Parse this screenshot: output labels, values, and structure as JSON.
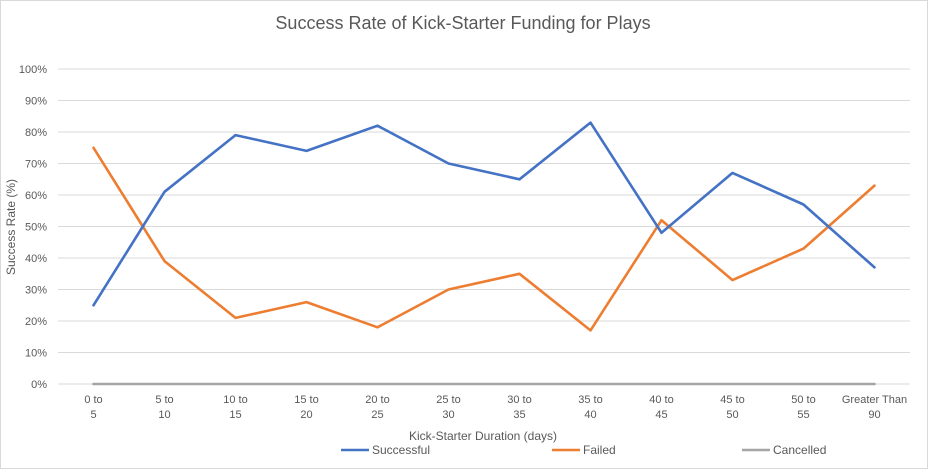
{
  "chart_data": {
    "type": "line",
    "title": "Success Rate of Kick-Starter Funding for Plays",
    "xlabel": "Kick-Starter Duration (days)",
    "ylabel": "Success Rate (%)",
    "ylim": [
      0,
      100
    ],
    "yticks": [
      "0%",
      "10%",
      "20%",
      "30%",
      "40%",
      "50%",
      "60%",
      "70%",
      "80%",
      "90%",
      "100%"
    ],
    "categories": [
      "0 to 5",
      "5 to 10",
      "10 to 15",
      "15 to 20",
      "20 to 25",
      "25 to 30",
      "30 to 35",
      "35 to 40",
      "40 to 45",
      "45 to 50",
      "50 to 55",
      "Greater Than 90"
    ],
    "series": [
      {
        "name": "Successful",
        "color": "#4472c4",
        "values": [
          25,
          61,
          79,
          74,
          82,
          70,
          65,
          83,
          48,
          67,
          57,
          37
        ]
      },
      {
        "name": "Failed",
        "color": "#ed7d31",
        "values": [
          75,
          39,
          21,
          26,
          18,
          30,
          35,
          17,
          52,
          33,
          43,
          63
        ]
      },
      {
        "name": "Cancelled",
        "color": "#a5a5a5",
        "values": [
          0,
          0,
          0,
          0,
          0,
          0,
          0,
          0,
          0,
          0,
          0,
          0
        ]
      }
    ],
    "grid": true,
    "legend": "bottom"
  }
}
